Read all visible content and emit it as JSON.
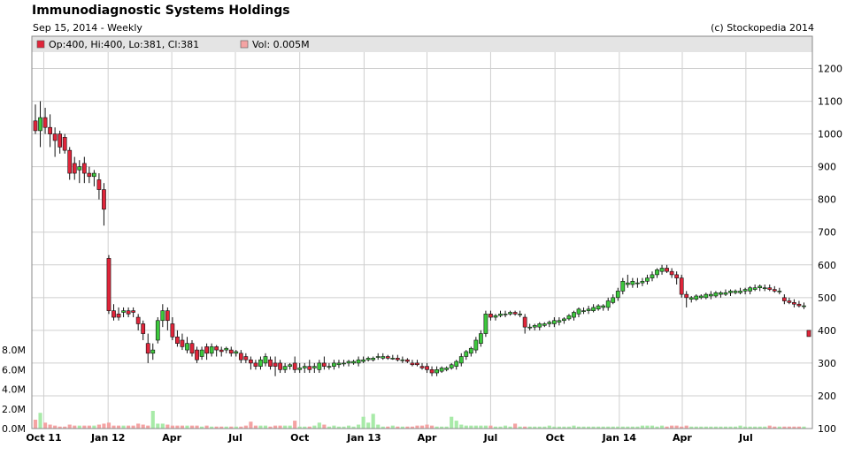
{
  "header": {
    "title": "Immunodiagnostic Systems Holdings",
    "subtitle": "Sep 15, 2014 - Weekly",
    "copyright": "(c) Stockopedia 2014"
  },
  "legend": {
    "ohlc": "Op:400, Hi:400, Lo:381, Cl:381",
    "volume": "Vol: 0.005M"
  },
  "colors": {
    "up": "#3cc83c",
    "down": "#e0253a",
    "vol_up": "#a8eaa8",
    "vol_down": "#f4a3a3",
    "grid": "#cfcfcf",
    "legend_bg": "#e4e4e4"
  },
  "chart_data": {
    "type": "candlestick",
    "price_axis": {
      "ylim": [
        100,
        1250
      ],
      "ticks": [
        100,
        200,
        300,
        400,
        500,
        600,
        700,
        800,
        900,
        1000,
        1100,
        1200
      ]
    },
    "volume_axis": {
      "ylim": [
        0,
        9
      ],
      "ticks": [
        0,
        2,
        4,
        6,
        8
      ],
      "tick_labels": [
        "0.0M",
        "2.0M",
        "4.0M",
        "6.0M",
        "8.0M"
      ]
    },
    "x_axis": {
      "ticks": [
        {
          "label": "Oct 11",
          "date": "2011-10-01"
        },
        {
          "label": "Jan 12",
          "date": "2012-01-01"
        },
        {
          "label": "Apr",
          "date": "2012-04-01"
        },
        {
          "label": "Jul",
          "date": "2012-07-01"
        },
        {
          "label": "Oct",
          "date": "2012-10-01"
        },
        {
          "label": "Jan 13",
          "date": "2013-01-01"
        },
        {
          "label": "Apr",
          "date": "2013-04-01"
        },
        {
          "label": "Jul",
          "date": "2013-07-01"
        },
        {
          "label": "Oct",
          "date": "2013-10-01"
        },
        {
          "label": "Jan 14",
          "date": "2014-01-01"
        },
        {
          "label": "Apr",
          "date": "2014-04-01"
        },
        {
          "label": "Jul",
          "date": "2014-07-01"
        }
      ]
    },
    "start_date": "2011-09-19",
    "interval": "weekly",
    "candles": [
      [
        1040,
        1090,
        1000,
        1010,
        0.9
      ],
      [
        1010,
        1100,
        960,
        1050,
        1.6
      ],
      [
        1050,
        1080,
        1000,
        1020,
        0.6
      ],
      [
        1020,
        1060,
        960,
        1000,
        0.4
      ],
      [
        1000,
        1020,
        930,
        980,
        0.3
      ],
      [
        1000,
        1010,
        940,
        960,
        0.2
      ],
      [
        990,
        1000,
        940,
        950,
        0.2
      ],
      [
        950,
        960,
        860,
        880,
        0.4
      ],
      [
        910,
        930,
        860,
        880,
        0.3
      ],
      [
        890,
        920,
        850,
        900,
        0.3
      ],
      [
        910,
        930,
        850,
        880,
        0.3
      ],
      [
        880,
        900,
        850,
        870,
        0.3
      ],
      [
        870,
        890,
        840,
        880,
        0.3
      ],
      [
        860,
        880,
        800,
        830,
        0.4
      ],
      [
        830,
        850,
        720,
        770,
        0.5
      ],
      [
        620,
        630,
        450,
        460,
        0.6
      ],
      [
        460,
        480,
        430,
        440,
        0.3
      ],
      [
        450,
        470,
        430,
        440,
        0.3
      ],
      [
        455,
        470,
        440,
        460,
        0.3
      ],
      [
        460,
        470,
        440,
        450,
        0.3
      ],
      [
        460,
        470,
        440,
        455,
        0.3
      ],
      [
        440,
        450,
        400,
        420,
        0.5
      ],
      [
        420,
        430,
        370,
        390,
        0.4
      ],
      [
        360,
        390,
        300,
        330,
        0.3
      ],
      [
        330,
        360,
        310,
        340,
        1.8
      ],
      [
        370,
        440,
        360,
        430,
        0.5
      ],
      [
        430,
        480,
        410,
        460,
        0.5
      ],
      [
        460,
        470,
        400,
        430,
        0.4
      ],
      [
        420,
        440,
        370,
        380,
        0.3
      ],
      [
        380,
        400,
        350,
        360,
        0.3
      ],
      [
        370,
        390,
        340,
        350,
        0.3
      ],
      [
        340,
        380,
        330,
        360,
        0.3
      ],
      [
        360,
        370,
        320,
        330,
        0.3
      ],
      [
        340,
        350,
        300,
        310,
        0.3
      ],
      [
        320,
        350,
        310,
        340,
        0.2
      ],
      [
        350,
        360,
        310,
        330,
        0.3
      ],
      [
        330,
        360,
        320,
        350,
        0.2
      ],
      [
        350,
        355,
        320,
        340,
        0.2
      ],
      [
        340,
        350,
        320,
        335,
        0.2
      ],
      [
        340,
        350,
        330,
        345,
        0.2
      ],
      [
        340,
        350,
        320,
        330,
        0.2
      ],
      [
        330,
        340,
        320,
        335,
        0.2
      ],
      [
        330,
        340,
        300,
        310,
        0.2
      ],
      [
        320,
        330,
        300,
        310,
        0.3
      ],
      [
        310,
        320,
        280,
        300,
        0.7
      ],
      [
        300,
        310,
        280,
        290,
        0.3
      ],
      [
        290,
        320,
        280,
        310,
        0.3
      ],
      [
        300,
        330,
        290,
        320,
        0.3
      ],
      [
        310,
        320,
        280,
        290,
        0.2
      ],
      [
        300,
        320,
        260,
        290,
        0.3
      ],
      [
        300,
        310,
        270,
        280,
        0.3
      ],
      [
        280,
        300,
        270,
        290,
        0.3
      ],
      [
        290,
        300,
        280,
        295,
        0.3
      ],
      [
        300,
        320,
        270,
        280,
        0.8
      ],
      [
        280,
        300,
        270,
        285,
        0.2
      ],
      [
        285,
        300,
        270,
        290,
        0.2
      ],
      [
        290,
        310,
        270,
        280,
        0.2
      ],
      [
        285,
        300,
        270,
        290,
        0.3
      ],
      [
        280,
        310,
        270,
        300,
        0.6
      ],
      [
        300,
        320,
        280,
        290,
        0.4
      ],
      [
        290,
        300,
        280,
        290,
        0.2
      ],
      [
        290,
        310,
        280,
        300,
        0.3
      ],
      [
        295,
        310,
        285,
        300,
        0.2
      ],
      [
        300,
        310,
        290,
        300,
        0.2
      ],
      [
        300,
        310,
        290,
        305,
        0.3
      ],
      [
        300,
        310,
        295,
        305,
        0.2
      ],
      [
        300,
        320,
        290,
        310,
        0.4
      ],
      [
        305,
        320,
        300,
        310,
        1.2
      ],
      [
        310,
        320,
        305,
        315,
        0.6
      ],
      [
        310,
        320,
        305,
        315,
        1.5
      ],
      [
        320,
        330,
        310,
        320,
        0.4
      ],
      [
        315,
        330,
        310,
        320,
        0.2
      ],
      [
        320,
        325,
        310,
        315,
        0.2
      ],
      [
        315,
        325,
        310,
        315,
        0.3
      ],
      [
        315,
        325,
        305,
        310,
        0.2
      ],
      [
        310,
        320,
        300,
        310,
        0.2
      ],
      [
        310,
        315,
        300,
        305,
        0.2
      ],
      [
        300,
        310,
        290,
        295,
        0.2
      ],
      [
        300,
        310,
        290,
        295,
        0.3
      ],
      [
        290,
        300,
        280,
        285,
        0.3
      ],
      [
        290,
        300,
        270,
        280,
        0.4
      ],
      [
        280,
        290,
        260,
        270,
        0.3
      ],
      [
        270,
        290,
        260,
        280,
        0.2
      ],
      [
        275,
        290,
        270,
        285,
        0.2
      ],
      [
        280,
        290,
        275,
        285,
        0.2
      ],
      [
        285,
        300,
        280,
        295,
        1.2
      ],
      [
        290,
        310,
        280,
        305,
        0.8
      ],
      [
        300,
        330,
        290,
        320,
        0.4
      ],
      [
        320,
        340,
        310,
        335,
        0.3
      ],
      [
        330,
        350,
        320,
        345,
        0.3
      ],
      [
        340,
        380,
        330,
        370,
        0.3
      ],
      [
        360,
        400,
        350,
        390,
        0.3
      ],
      [
        390,
        460,
        380,
        450,
        0.3
      ],
      [
        450,
        460,
        430,
        440,
        0.3
      ],
      [
        440,
        450,
        430,
        445,
        0.2
      ],
      [
        445,
        460,
        440,
        450,
        0.2
      ],
      [
        450,
        460,
        440,
        450,
        0.3
      ],
      [
        450,
        460,
        445,
        455,
        0.2
      ],
      [
        455,
        460,
        445,
        450,
        0.5
      ],
      [
        450,
        460,
        440,
        450,
        0.2
      ],
      [
        440,
        450,
        390,
        410,
        0.2
      ],
      [
        410,
        420,
        400,
        410,
        0.2
      ],
      [
        410,
        420,
        400,
        415,
        0.2
      ],
      [
        410,
        425,
        400,
        420,
        0.2
      ],
      [
        415,
        425,
        410,
        420,
        0.2
      ],
      [
        420,
        430,
        410,
        425,
        0.3
      ],
      [
        420,
        440,
        410,
        430,
        0.2
      ],
      [
        425,
        440,
        415,
        430,
        0.2
      ],
      [
        430,
        440,
        420,
        435,
        0.2
      ],
      [
        435,
        450,
        430,
        445,
        0.2
      ],
      [
        440,
        460,
        430,
        455,
        0.3
      ],
      [
        450,
        470,
        440,
        465,
        0.2
      ],
      [
        460,
        470,
        450,
        460,
        0.2
      ],
      [
        460,
        475,
        450,
        465,
        0.2
      ],
      [
        460,
        480,
        455,
        470,
        0.2
      ],
      [
        465,
        480,
        460,
        475,
        0.2
      ],
      [
        470,
        480,
        460,
        475,
        0.2
      ],
      [
        470,
        500,
        460,
        490,
        0.2
      ],
      [
        485,
        510,
        480,
        500,
        0.2
      ],
      [
        500,
        530,
        490,
        520,
        0.2
      ],
      [
        520,
        560,
        510,
        550,
        0.2
      ],
      [
        540,
        570,
        530,
        545,
        0.2
      ],
      [
        540,
        560,
        530,
        550,
        0.2
      ],
      [
        545,
        560,
        530,
        545,
        0.2
      ],
      [
        545,
        560,
        535,
        550,
        0.3
      ],
      [
        550,
        570,
        540,
        560,
        0.3
      ],
      [
        560,
        580,
        550,
        570,
        0.3
      ],
      [
        570,
        590,
        560,
        585,
        0.2
      ],
      [
        580,
        600,
        570,
        590,
        0.3
      ],
      [
        590,
        600,
        575,
        580,
        0.2
      ],
      [
        580,
        590,
        560,
        570,
        0.3
      ],
      [
        570,
        580,
        540,
        560,
        0.3
      ],
      [
        560,
        570,
        500,
        510,
        0.2
      ],
      [
        510,
        520,
        470,
        500,
        0.3
      ],
      [
        495,
        505,
        485,
        500,
        0.2
      ],
      [
        495,
        510,
        490,
        505,
        0.2
      ],
      [
        500,
        510,
        495,
        505,
        0.2
      ],
      [
        500,
        515,
        495,
        510,
        0.2
      ],
      [
        505,
        520,
        495,
        510,
        0.2
      ],
      [
        505,
        520,
        500,
        515,
        0.2
      ],
      [
        510,
        520,
        500,
        515,
        0.2
      ],
      [
        510,
        525,
        505,
        515,
        0.2
      ],
      [
        515,
        525,
        505,
        520,
        0.2
      ],
      [
        515,
        525,
        510,
        520,
        0.2
      ],
      [
        515,
        530,
        510,
        520,
        0.3
      ],
      [
        520,
        530,
        510,
        525,
        0.2
      ],
      [
        520,
        535,
        510,
        530,
        0.2
      ],
      [
        525,
        540,
        520,
        530,
        0.2
      ],
      [
        530,
        540,
        520,
        535,
        0.2
      ],
      [
        530,
        540,
        520,
        530,
        0.2
      ],
      [
        530,
        540,
        520,
        525,
        0.3
      ],
      [
        525,
        535,
        515,
        520,
        0.2
      ],
      [
        520,
        530,
        510,
        520,
        0.2
      ],
      [
        500,
        510,
        480,
        490,
        0.2
      ],
      [
        490,
        500,
        480,
        485,
        0.2
      ],
      [
        485,
        495,
        470,
        480,
        0.2
      ],
      [
        480,
        490,
        470,
        475,
        0.2
      ],
      [
        475,
        485,
        465,
        475,
        0.2
      ],
      [
        400,
        400,
        381,
        381,
        0.005
      ]
    ]
  }
}
